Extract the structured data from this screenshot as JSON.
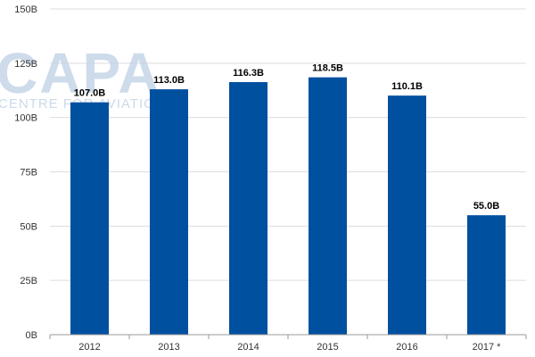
{
  "chart_data": {
    "type": "bar",
    "categories": [
      "2012",
      "2013",
      "2014",
      "2015",
      "2016",
      "2017 *"
    ],
    "values": [
      107.0,
      113.0,
      116.3,
      118.5,
      110.1,
      55.0
    ],
    "data_labels": [
      "107.0B",
      "113.0B",
      "116.3B",
      "118.5B",
      "110.1B",
      "55.0B"
    ],
    "y_ticks": [
      0,
      25,
      50,
      75,
      100,
      125,
      150
    ],
    "y_tick_labels": [
      "0B",
      "25B",
      "50B",
      "75B",
      "100B",
      "125B",
      "150B"
    ],
    "ylim": [
      0,
      150
    ],
    "grid": true,
    "legend": "none",
    "bar_color": "#0050a0",
    "grid_color": "#dddddd",
    "watermark": {
      "main": "CAPA",
      "sub": "CENTRE FOR AVIATION"
    }
  }
}
